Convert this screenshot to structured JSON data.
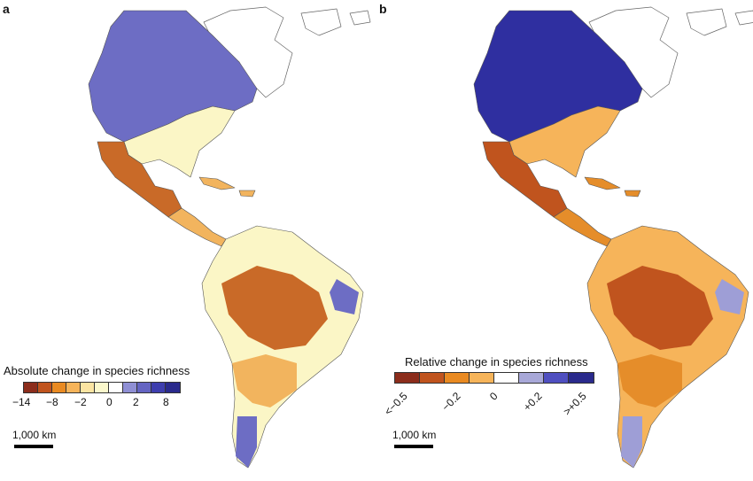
{
  "panel_a": {
    "letter": "a",
    "legend_title": "Absolute change in species richness",
    "legend_colors": [
      "#8c2d1c",
      "#c0541e",
      "#e98a22",
      "#f6b45a",
      "#fbe4a2",
      "#fbf8cc",
      "#ffffff",
      "#8f8fd4",
      "#6464c2",
      "#3e3eae",
      "#2a2a8c"
    ],
    "ticks": [
      "−14",
      "−8",
      "−2",
      "0",
      "2",
      "8"
    ],
    "scale_label": "1,000 km",
    "palette": {
      "north": "#6d6dc4",
      "mid": "#fbf6c6",
      "orange": "#f2b45e",
      "dark": "#c96a28",
      "blue": "#6d6dc4"
    }
  },
  "panel_b": {
    "letter": "b",
    "legend_title": "Relative change in species richness",
    "legend_colors": [
      "#8c2d1c",
      "#c0541e",
      "#e98a22",
      "#f6b45a",
      "#ffffff",
      "#a8a8d8",
      "#4f4fc0",
      "#2a2a8c"
    ],
    "ticks": [
      "<−0.5",
      "−0.2",
      "0",
      "+0.2",
      ">+0.5"
    ],
    "scale_label": "1,000 km",
    "palette": {
      "north": "#2f2fa0",
      "mid": "#f6b45a",
      "orange": "#e58d2a",
      "dark": "#c0541e",
      "blue": "#9e9ed6"
    }
  }
}
